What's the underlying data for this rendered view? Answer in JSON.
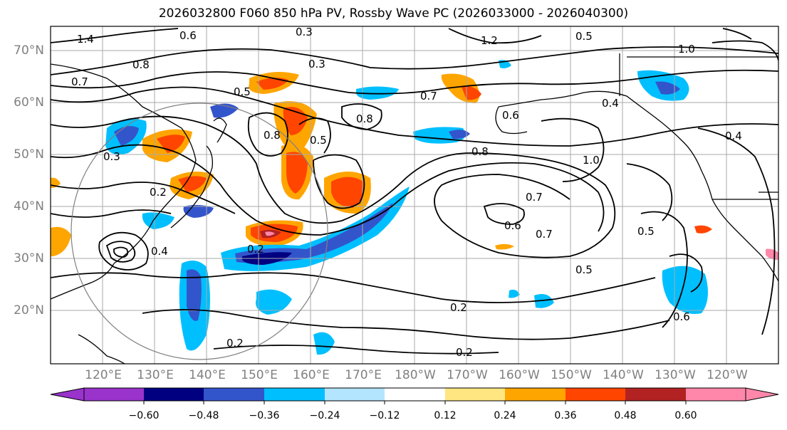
{
  "title": "2026032800 F060 850 hPa PV, Rossby Wave PC (2026033000 - 2026040300)",
  "lat_labels": [
    "70°N",
    "60°N",
    "50°N",
    "40°N",
    "30°N",
    "20°N"
  ],
  "lon_labels": [
    "120°E",
    "130°E",
    "140°E",
    "150°E",
    "160°E",
    "170°E",
    "180°W",
    "170°W",
    "160°W",
    "150°W",
    "140°W",
    "130°W",
    "120°W"
  ],
  "colorbar": {
    "ticks": [
      "−0.60",
      "−0.48",
      "−0.36",
      "−0.24",
      "−0.12",
      "0.12",
      "0.24",
      "0.36",
      "0.48",
      "0.60"
    ],
    "colors": [
      "#9933cc",
      "#000080",
      "#3355cc",
      "#00bfff",
      "#b3e5ff",
      "#ffffff",
      "#ffe680",
      "#ffa500",
      "#ff4500",
      "#b22222",
      "#ff88aa"
    ]
  },
  "contour_labels": [
    "1.4",
    "0.6",
    "0.3",
    "1.2",
    "0.5",
    "1.0",
    "0.8",
    "0.7",
    "0.4",
    "0.2",
    "0.6",
    "0.8",
    "0.7",
    "1.0",
    "0.5",
    "0.3",
    "0.2",
    "0.5",
    "0.6",
    "0.7",
    "0.8",
    "0.4",
    "0.5",
    "0.2",
    "0.6",
    "0.5",
    "0.2",
    "0.2",
    "0.8",
    "0.3",
    "0.4",
    "0.7"
  ],
  "shading_legend": {
    "colors_used": [
      "#00bfff",
      "#3355cc",
      "#000080",
      "#ffa500",
      "#ff4500",
      "#b22222",
      "#ff88aa"
    ]
  }
}
